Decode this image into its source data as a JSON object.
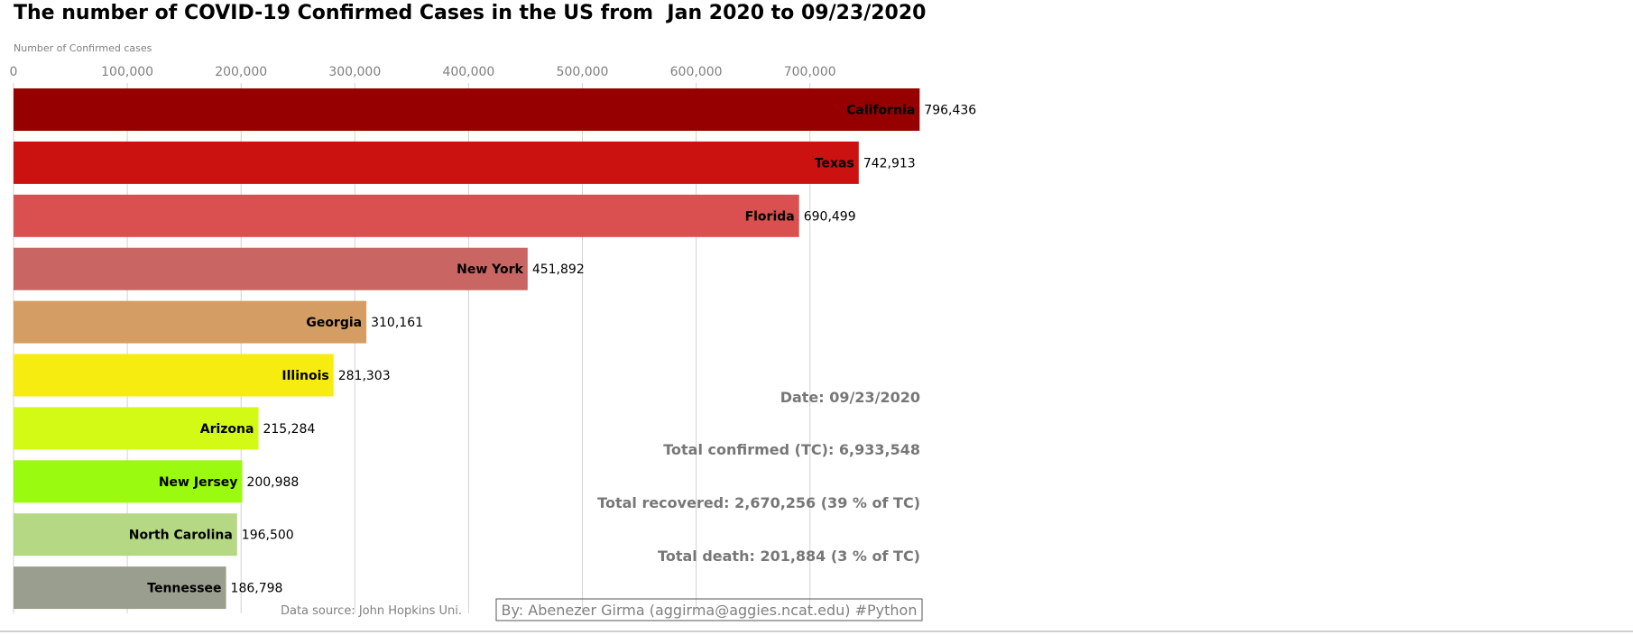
{
  "chart_data": {
    "type": "bar",
    "orientation": "horizontal",
    "title": "The number of COVID-19 Confirmed Cases in the US from  Jan 2020 to 09/23/2020",
    "xlabel": "Number of Confirmed cases",
    "ylabel": "",
    "xlim": [
      0,
      800000
    ],
    "xticks": [
      0,
      100000,
      200000,
      300000,
      400000,
      500000,
      600000,
      700000
    ],
    "xtick_labels": [
      "0",
      "100,000",
      "200,000",
      "300,000",
      "400,000",
      "500,000",
      "600,000",
      "700,000"
    ],
    "grid": "vertical",
    "categories": [
      "California",
      "Texas",
      "Florida",
      "New York",
      "Georgia",
      "Illinois",
      "Arizona",
      "New Jersey",
      "North Carolina",
      "Tennessee"
    ],
    "values": [
      796436,
      742913,
      690499,
      451892,
      310161,
      281303,
      215284,
      200988,
      196500,
      186798
    ],
    "value_labels": [
      "796,436",
      "742,913",
      "690,499",
      "451,892",
      "310,161",
      "281,303",
      "215,284",
      "200,988",
      "196,500",
      "186,798"
    ],
    "colors": [
      "#960000",
      "#cc1111",
      "#da5050",
      "#c96563",
      "#d49d63",
      "#f7ec10",
      "#d2fa14",
      "#9afa10",
      "#b4d884",
      "#999e8e"
    ],
    "annotations": {
      "date": "Date: 09/23/2020",
      "total_confirmed": "Total confirmed (TC): 6,933,548",
      "total_recovered": "Total recovered: 2,670,256  (39 % of TC)",
      "total_death": "Total death: 201,884 (3 % of TC)",
      "source": "Data source: John Hopkins Uni.",
      "credit": "By: Abenezer Girma (aggirma@aggies.ncat.edu) #Python"
    }
  }
}
